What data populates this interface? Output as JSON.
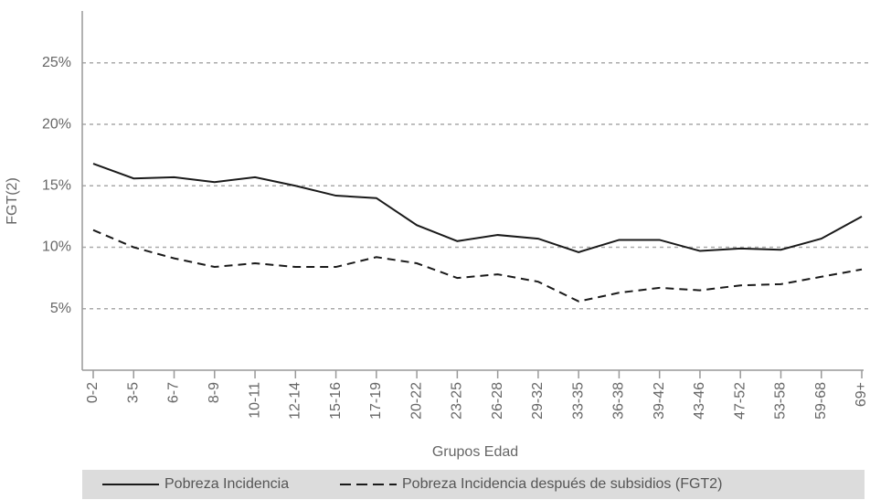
{
  "chart_data": {
    "type": "line",
    "x_label": "Grupos Edad",
    "y_label": "FGT(2)",
    "categories": [
      "0-2",
      "3-5",
      "6-7",
      "8-9",
      "10-11",
      "12-14",
      "15-16",
      "17-19",
      "20-22",
      "23-25",
      "26-28",
      "29-32",
      "33-35",
      "36-38",
      "39-42",
      "43-46",
      "47-52",
      "53-58",
      "59-68",
      "69+"
    ],
    "series": [
      {
        "name": "Pobreza Incidencia",
        "color": "#1a1a1a",
        "dash": false,
        "values": [
          16.8,
          15.6,
          15.7,
          15.3,
          15.7,
          15.0,
          14.2,
          14.0,
          11.8,
          10.5,
          11.0,
          10.7,
          9.6,
          10.6,
          10.6,
          9.7,
          9.9,
          9.8,
          10.7,
          12.5
        ]
      },
      {
        "name": "Pobreza Incidencia después de subsidios (FGT2)",
        "color": "#1a1a1a",
        "dash": true,
        "values": [
          11.4,
          10.0,
          9.1,
          8.4,
          8.7,
          8.4,
          8.4,
          9.2,
          8.7,
          7.5,
          7.8,
          7.2,
          5.6,
          6.3,
          6.7,
          6.5,
          6.9,
          7.0,
          7.6,
          8.2
        ]
      }
    ],
    "ylim": [
      0,
      29
    ],
    "yticks": [
      {
        "value": 5,
        "label": "5%"
      },
      {
        "value": 10,
        "label": "10%"
      },
      {
        "value": 15,
        "label": "15%"
      },
      {
        "value": 20,
        "label": "20%"
      },
      {
        "value": 25,
        "label": "25%"
      }
    ],
    "grid": true,
    "legend": "bottom"
  }
}
